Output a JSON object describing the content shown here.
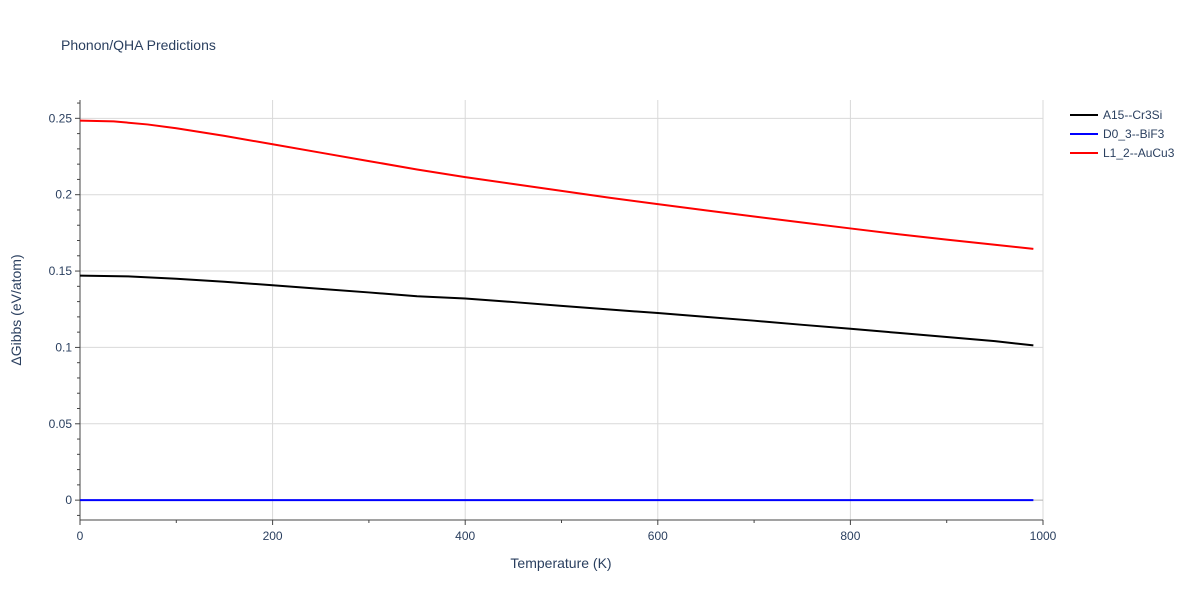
{
  "chart_data": {
    "type": "line",
    "title": "Phonon/QHA Predictions",
    "xlabel": "Temperature (K)",
    "ylabel": "ΔGibbs (eV/atom)",
    "xlim": [
      0,
      1000
    ],
    "ylim": [
      -0.013,
      0.262
    ],
    "x_ticks": [
      0,
      200,
      400,
      600,
      800,
      1000
    ],
    "x_tick_labels": [
      "0",
      "200",
      "400",
      "600",
      "800",
      "1000"
    ],
    "y_ticks": [
      0,
      0.05,
      0.1,
      0.15,
      0.2,
      0.25
    ],
    "y_tick_labels": [
      "0",
      "0.05",
      "0.1",
      "0.15",
      "0.2",
      "0.25"
    ],
    "grid": true,
    "legend_position": "top-right",
    "series": [
      {
        "name": "A15--Cr3Si",
        "color": "#000000",
        "x": [
          0,
          50,
          100,
          150,
          200,
          250,
          300,
          350,
          400,
          450,
          500,
          550,
          600,
          650,
          700,
          750,
          800,
          850,
          900,
          950,
          990
        ],
        "y": [
          0.147,
          0.1465,
          0.145,
          0.143,
          0.1407,
          0.1383,
          0.136,
          0.1335,
          0.132,
          0.1297,
          0.1272,
          0.1248,
          0.1225,
          0.12,
          0.1175,
          0.1148,
          0.1122,
          0.1095,
          0.1068,
          0.1041,
          0.1013
        ]
      },
      {
        "name": "D0_3--BiF3",
        "color": "#0000ff",
        "x": [
          0,
          990
        ],
        "y": [
          0,
          0
        ]
      },
      {
        "name": "L1_2--AuCu3",
        "color": "#ff0000",
        "x": [
          0,
          35,
          70,
          100,
          150,
          200,
          250,
          300,
          350,
          400,
          450,
          500,
          550,
          600,
          650,
          700,
          750,
          800,
          850,
          900,
          950,
          990
        ],
        "y": [
          0.2485,
          0.248,
          0.246,
          0.2435,
          0.2385,
          0.233,
          0.2275,
          0.222,
          0.2165,
          0.2115,
          0.207,
          0.2025,
          0.198,
          0.1938,
          0.1897,
          0.1857,
          0.1818,
          0.1779,
          0.1741,
          0.1706,
          0.1672,
          0.1645
        ]
      }
    ]
  }
}
